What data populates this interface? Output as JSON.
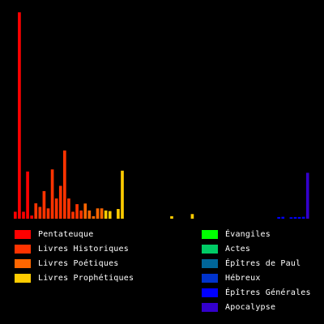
{
  "chart_data": {
    "type": "bar",
    "title": "",
    "xlabel": "",
    "ylabel": "",
    "grid": false,
    "legend_placement": "bottom",
    "background": "#000000",
    "series": [
      {
        "name": "Pentateuque",
        "color": "#ff0000",
        "values": [
          3.3,
          98,
          3.3,
          22.4,
          1.5
        ]
      },
      {
        "name": "Livres Historiques",
        "color": "#ff3300",
        "values": [
          7.3,
          5.6,
          13.1,
          4.9,
          23.4,
          9.6,
          15.6,
          32.4,
          9.6,
          3.3,
          6.9,
          3.9
        ]
      },
      {
        "name": "Livres Poétiques",
        "color": "#ff6600",
        "values": [
          7.2,
          3.9,
          1.2,
          4.9,
          4.9
        ]
      },
      {
        "name": "Livres Prophétiques",
        "color": "#ffcc00",
        "values": [
          3.9,
          3.6,
          0,
          4.6,
          22.8,
          0,
          0,
          0,
          0,
          0,
          0,
          0,
          0,
          0,
          0,
          0,
          1.2,
          0,
          0,
          0,
          0,
          2.2,
          0
        ]
      },
      {
        "name": "Évangiles",
        "color": "#00ff00",
        "values": [
          0,
          0,
          0,
          0
        ]
      },
      {
        "name": "Actes",
        "color": "#00cc66",
        "values": [
          0
        ]
      },
      {
        "name": "Épîtres de Paul",
        "color": "#006699",
        "values": [
          0,
          0,
          0,
          0,
          0,
          0,
          0,
          0,
          0,
          0,
          0,
          0,
          0
        ]
      },
      {
        "name": "Hébreux",
        "color": "#0033cc",
        "values": [
          0
        ]
      },
      {
        "name": "Épîtres Générales",
        "color": "#0000ff",
        "values": [
          0.8,
          0.9,
          0,
          0.7,
          0.8,
          0.8,
          0.9
        ]
      },
      {
        "name": "Apocalypse",
        "color": "#3300cc",
        "values": [
          21.8
        ]
      }
    ],
    "ylim": [
      0,
      100
    ]
  }
}
